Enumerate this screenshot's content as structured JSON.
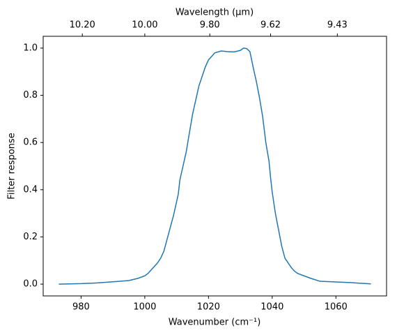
{
  "chart_data": {
    "type": "line",
    "x_label": "Wavenumber (cm⁻¹)",
    "y_label": "Filter response",
    "x2_label": "Wavelength (μm)",
    "x": [
      973,
      980,
      985,
      990,
      995,
      998,
      1000,
      1001,
      1002,
      1003,
      1004,
      1005,
      1006,
      1007,
      1008,
      1009,
      1010,
      1010.5,
      1011,
      1012,
      1013,
      1014,
      1015,
      1016,
      1017,
      1018,
      1019,
      1020,
      1021,
      1022,
      1024,
      1026,
      1028,
      1030,
      1031,
      1032,
      1033,
      1034,
      1035,
      1036,
      1037,
      1038,
      1039,
      1039.5,
      1040,
      1041,
      1042,
      1043,
      1044,
      1045,
      1046,
      1047,
      1048,
      1050,
      1052,
      1055,
      1060,
      1065,
      1071
    ],
    "series": [
      {
        "color": "#1f77b4",
        "values": [
          0.0,
          0.002,
          0.005,
          0.01,
          0.015,
          0.025,
          0.035,
          0.045,
          0.06,
          0.075,
          0.09,
          0.11,
          0.14,
          0.19,
          0.24,
          0.29,
          0.35,
          0.38,
          0.44,
          0.5,
          0.56,
          0.64,
          0.72,
          0.78,
          0.84,
          0.88,
          0.92,
          0.95,
          0.965,
          0.98,
          0.988,
          0.985,
          0.984,
          0.99,
          1.0,
          0.998,
          0.985,
          0.92,
          0.86,
          0.79,
          0.71,
          0.6,
          0.52,
          0.45,
          0.39,
          0.3,
          0.23,
          0.16,
          0.11,
          0.09,
          0.07,
          0.055,
          0.045,
          0.035,
          0.025,
          0.012,
          0.009,
          0.006,
          0.001
        ]
      }
    ],
    "xlim": [
      968.1,
      1075.9
    ],
    "ylim": [
      -0.05,
      1.05
    ],
    "xticks": [
      980,
      1000,
      1020,
      1040,
      1060
    ],
    "yticks": [
      {
        "value": 0,
        "label": "0.0"
      },
      {
        "value": 0.2,
        "label": "0.2"
      },
      {
        "value": 0.4,
        "label": "0.4"
      },
      {
        "value": 0.6,
        "label": "0.6"
      },
      {
        "value": 0.8,
        "label": "0.8"
      },
      {
        "value": 1,
        "label": "1.0"
      }
    ],
    "x2ticks": [
      {
        "value": 10.2,
        "label": "10.20"
      },
      {
        "value": 10,
        "label": "10.00"
      },
      {
        "value": 9.8,
        "label": "9.80"
      },
      {
        "value": 9.62,
        "label": "9.62"
      },
      {
        "value": 9.43,
        "label": "9.43"
      }
    ]
  }
}
